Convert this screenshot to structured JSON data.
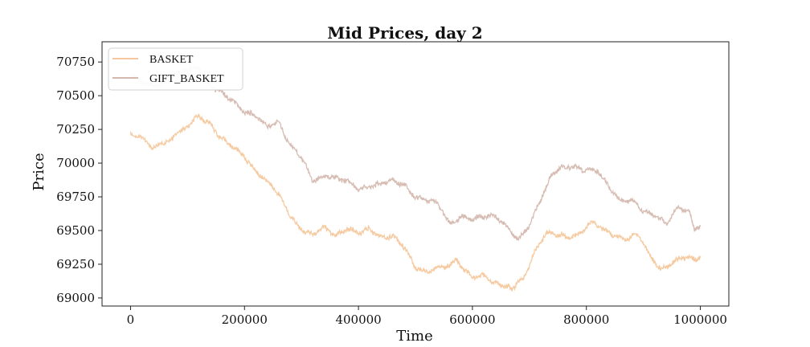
{
  "chart_data": {
    "type": "line",
    "title": "Mid Prices, day 2",
    "xlabel": "Time",
    "ylabel": "Price",
    "xlim": [
      -50000,
      1050000
    ],
    "ylim": [
      68940,
      70900
    ],
    "x_ticks": [
      0,
      200000,
      400000,
      600000,
      800000,
      1000000
    ],
    "x_tick_labels": [
      "0",
      "200000",
      "400000",
      "600000",
      "800000",
      "1000000"
    ],
    "y_ticks": [
      69000,
      69250,
      69500,
      69750,
      70000,
      70250,
      70500,
      70750
    ],
    "y_tick_labels": [
      "69000",
      "69250",
      "69500",
      "69750",
      "70000",
      "70250",
      "70500",
      "70750"
    ],
    "legend_position": "top-left",
    "grid": false,
    "series": [
      {
        "name": "BASKET",
        "color": "#f6c79c",
        "points": [
          [
            0,
            70210
          ],
          [
            20000,
            70180
          ],
          [
            40000,
            70120
          ],
          [
            70000,
            70180
          ],
          [
            100000,
            70260
          ],
          [
            120000,
            70350
          ],
          [
            140000,
            70300
          ],
          [
            160000,
            70180
          ],
          [
            180000,
            70110
          ],
          [
            200000,
            70050
          ],
          [
            220000,
            69950
          ],
          [
            240000,
            69860
          ],
          [
            260000,
            69760
          ],
          [
            280000,
            69620
          ],
          [
            300000,
            69510
          ],
          [
            320000,
            69460
          ],
          [
            340000,
            69520
          ],
          [
            360000,
            69470
          ],
          [
            380000,
            69520
          ],
          [
            400000,
            69470
          ],
          [
            420000,
            69510
          ],
          [
            440000,
            69460
          ],
          [
            460000,
            69460
          ],
          [
            480000,
            69370
          ],
          [
            500000,
            69230
          ],
          [
            520000,
            69200
          ],
          [
            540000,
            69220
          ],
          [
            560000,
            69230
          ],
          [
            570000,
            69300
          ],
          [
            580000,
            69240
          ],
          [
            600000,
            69140
          ],
          [
            620000,
            69160
          ],
          [
            640000,
            69120
          ],
          [
            660000,
            69090
          ],
          [
            670000,
            69060
          ],
          [
            690000,
            69150
          ],
          [
            710000,
            69360
          ],
          [
            730000,
            69480
          ],
          [
            750000,
            69460
          ],
          [
            770000,
            69450
          ],
          [
            790000,
            69490
          ],
          [
            810000,
            69560
          ],
          [
            830000,
            69500
          ],
          [
            850000,
            69470
          ],
          [
            870000,
            69440
          ],
          [
            890000,
            69470
          ],
          [
            910000,
            69320
          ],
          [
            930000,
            69220
          ],
          [
            950000,
            69260
          ],
          [
            970000,
            69290
          ],
          [
            990000,
            69290
          ],
          [
            1000000,
            69300
          ]
        ]
      },
      {
        "name": "GIFT_BASKET",
        "color": "#d4b8ae",
        "points": [
          [
            0,
            70640
          ],
          [
            20000,
            70610
          ],
          [
            40000,
            70580
          ],
          [
            60000,
            70600
          ],
          [
            80000,
            70650
          ],
          [
            100000,
            70700
          ],
          [
            120000,
            70720
          ],
          [
            140000,
            70560
          ],
          [
            160000,
            70520
          ],
          [
            180000,
            70470
          ],
          [
            200000,
            70380
          ],
          [
            220000,
            70340
          ],
          [
            240000,
            70270
          ],
          [
            260000,
            70320
          ],
          [
            280000,
            70130
          ],
          [
            300000,
            70030
          ],
          [
            320000,
            69870
          ],
          [
            340000,
            69920
          ],
          [
            360000,
            69880
          ],
          [
            380000,
            69860
          ],
          [
            400000,
            69820
          ],
          [
            420000,
            69830
          ],
          [
            440000,
            69840
          ],
          [
            460000,
            69870
          ],
          [
            480000,
            69850
          ],
          [
            500000,
            69750
          ],
          [
            520000,
            69720
          ],
          [
            540000,
            69700
          ],
          [
            560000,
            69560
          ],
          [
            580000,
            69600
          ],
          [
            600000,
            69570
          ],
          [
            620000,
            69610
          ],
          [
            640000,
            69620
          ],
          [
            660000,
            69520
          ],
          [
            680000,
            69420
          ],
          [
            700000,
            69550
          ],
          [
            720000,
            69740
          ],
          [
            740000,
            69910
          ],
          [
            760000,
            69970
          ],
          [
            780000,
            69980
          ],
          [
            800000,
            69950
          ],
          [
            820000,
            69930
          ],
          [
            840000,
            69820
          ],
          [
            860000,
            69730
          ],
          [
            880000,
            69720
          ],
          [
            900000,
            69630
          ],
          [
            920000,
            69620
          ],
          [
            940000,
            69560
          ],
          [
            960000,
            69660
          ],
          [
            980000,
            69640
          ],
          [
            990000,
            69510
          ],
          [
            1000000,
            69540
          ]
        ]
      }
    ]
  }
}
